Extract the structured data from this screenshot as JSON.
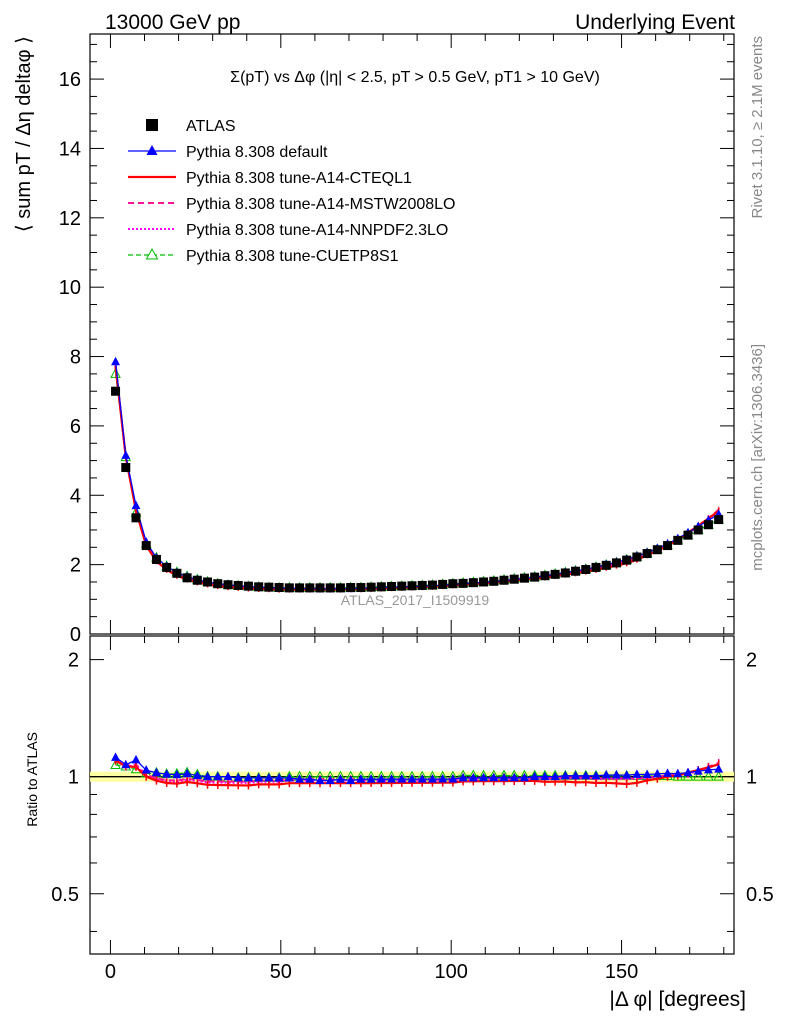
{
  "header": {
    "left": "13000 GeV pp",
    "right": "Underlying Event"
  },
  "side": {
    "rivet": "Rivet 3.1.10, ≥ 2.1M events",
    "mcplots": "mcplots.cern.ch [arXiv:1306.3436]"
  },
  "plot_title": "Σ(pT) vs Δφ (|η| < 2.5, pT > 0.5 GeV, pT1 > 10 GeV)",
  "watermark": "ATLAS_2017_I1509919",
  "colors": {
    "data": "#000000",
    "default": "#0000ff",
    "cteql1": "#ff0000",
    "mstw": "#ff1493",
    "nnpdf": "#ff00ff",
    "cuetp": "#00bb00",
    "band": "#ffff99"
  },
  "chart_data": [
    {
      "type": "scatter",
      "panel": "main",
      "ylabel": "⟨ sum pT / Δη deltaφ ⟩",
      "xlim": [
        -6,
        183
      ],
      "ylim": [
        0,
        17.3
      ],
      "x_ticks": [
        0,
        50,
        100,
        150
      ],
      "y_ticks": [
        0,
        2,
        4,
        6,
        8,
        10,
        12,
        14,
        16
      ],
      "legend_position": "top-left",
      "x": [
        1.5,
        4.5,
        7.5,
        10.5,
        13.5,
        16.5,
        19.5,
        22.5,
        25.5,
        28.5,
        31.5,
        34.5,
        37.5,
        40.5,
        43.5,
        46.5,
        49.5,
        52.5,
        55.5,
        58.5,
        61.5,
        64.5,
        67.5,
        70.5,
        73.5,
        76.5,
        79.5,
        82.5,
        85.5,
        88.5,
        91.5,
        94.5,
        97.5,
        100.5,
        103.5,
        106.5,
        109.5,
        112.5,
        115.5,
        118.5,
        121.5,
        124.5,
        127.5,
        130.5,
        133.5,
        136.5,
        139.5,
        142.5,
        145.5,
        148.5,
        151.5,
        154.5,
        157.5,
        160.5,
        163.5,
        166.5,
        169.5,
        172.5,
        175.5,
        178.5
      ],
      "series": [
        {
          "name": "ATLAS",
          "key": "data",
          "marker": "square",
          "values": [
            7.0,
            4.8,
            3.35,
            2.55,
            2.15,
            1.92,
            1.75,
            1.62,
            1.55,
            1.5,
            1.45,
            1.42,
            1.4,
            1.38,
            1.36,
            1.35,
            1.34,
            1.33,
            1.33,
            1.33,
            1.33,
            1.33,
            1.33,
            1.34,
            1.34,
            1.35,
            1.36,
            1.37,
            1.38,
            1.39,
            1.4,
            1.41,
            1.43,
            1.45,
            1.46,
            1.48,
            1.5,
            1.52,
            1.55,
            1.58,
            1.61,
            1.64,
            1.68,
            1.72,
            1.76,
            1.81,
            1.86,
            1.92,
            1.98,
            2.05,
            2.13,
            2.22,
            2.32,
            2.43,
            2.55,
            2.7,
            2.85,
            3.0,
            3.15,
            3.3
          ]
        },
        {
          "name": "Pythia 8.308 default",
          "key": "default",
          "marker": "triangle",
          "values": [
            7.85,
            5.15,
            3.7,
            2.65,
            2.2,
            1.95,
            1.77,
            1.65,
            1.56,
            1.5,
            1.45,
            1.42,
            1.39,
            1.37,
            1.35,
            1.34,
            1.33,
            1.32,
            1.31,
            1.31,
            1.3,
            1.3,
            1.31,
            1.31,
            1.32,
            1.33,
            1.34,
            1.35,
            1.36,
            1.37,
            1.38,
            1.39,
            1.41,
            1.43,
            1.45,
            1.47,
            1.49,
            1.51,
            1.54,
            1.57,
            1.6,
            1.64,
            1.68,
            1.72,
            1.77,
            1.82,
            1.87,
            1.93,
            2.0,
            2.07,
            2.15,
            2.25,
            2.35,
            2.47,
            2.6,
            2.75,
            2.92,
            3.1,
            3.28,
            3.45
          ]
        },
        {
          "name": "Pythia 8.308 tune-A14-CTEQL1",
          "key": "cteql1",
          "marker": "none",
          "values": [
            7.7,
            5.1,
            3.55,
            2.55,
            2.1,
            1.85,
            1.68,
            1.57,
            1.49,
            1.43,
            1.38,
            1.35,
            1.33,
            1.31,
            1.3,
            1.29,
            1.28,
            1.28,
            1.28,
            1.28,
            1.28,
            1.28,
            1.28,
            1.29,
            1.29,
            1.3,
            1.31,
            1.32,
            1.33,
            1.34,
            1.35,
            1.36,
            1.38,
            1.4,
            1.42,
            1.44,
            1.46,
            1.48,
            1.51,
            1.54,
            1.57,
            1.6,
            1.63,
            1.67,
            1.71,
            1.75,
            1.8,
            1.85,
            1.91,
            1.97,
            2.04,
            2.14,
            2.27,
            2.4,
            2.55,
            2.72,
            2.92,
            3.12,
            3.33,
            3.55
          ]
        },
        {
          "name": "Pythia 8.308 tune-A14-MSTW2008LO",
          "key": "mstw",
          "marker": "none",
          "values": [
            7.75,
            5.12,
            3.6,
            2.58,
            2.13,
            1.88,
            1.71,
            1.6,
            1.52,
            1.46,
            1.41,
            1.38,
            1.36,
            1.34,
            1.33,
            1.32,
            1.31,
            1.31,
            1.31,
            1.31,
            1.31,
            1.31,
            1.31,
            1.32,
            1.32,
            1.33,
            1.34,
            1.35,
            1.36,
            1.37,
            1.38,
            1.39,
            1.41,
            1.43,
            1.45,
            1.47,
            1.49,
            1.51,
            1.54,
            1.57,
            1.6,
            1.63,
            1.67,
            1.71,
            1.75,
            1.8,
            1.85,
            1.9,
            1.96,
            2.03,
            2.11,
            2.2,
            2.31,
            2.43,
            2.57,
            2.73,
            2.92,
            3.12,
            3.34,
            3.58
          ]
        },
        {
          "name": "Pythia 8.308 tune-A14-NNPDF2.3LO",
          "key": "nnpdf",
          "marker": "none",
          "values": [
            7.72,
            5.1,
            3.58,
            2.57,
            2.12,
            1.87,
            1.7,
            1.59,
            1.51,
            1.45,
            1.4,
            1.37,
            1.35,
            1.33,
            1.32,
            1.31,
            1.3,
            1.3,
            1.3,
            1.3,
            1.3,
            1.3,
            1.3,
            1.31,
            1.31,
            1.32,
            1.33,
            1.34,
            1.35,
            1.36,
            1.37,
            1.38,
            1.4,
            1.42,
            1.44,
            1.46,
            1.48,
            1.5,
            1.53,
            1.56,
            1.59,
            1.62,
            1.66,
            1.7,
            1.74,
            1.79,
            1.84,
            1.89,
            1.95,
            2.02,
            2.1,
            2.19,
            2.3,
            2.42,
            2.56,
            2.72,
            2.9,
            3.1,
            3.32,
            3.55
          ]
        },
        {
          "name": "Pythia 8.308 tune-CUETP8S1",
          "key": "cuetp",
          "marker": "open-triangle",
          "values": [
            7.5,
            5.1,
            3.5,
            2.6,
            2.2,
            1.95,
            1.78,
            1.66,
            1.57,
            1.5,
            1.45,
            1.41,
            1.39,
            1.37,
            1.35,
            1.34,
            1.33,
            1.33,
            1.33,
            1.33,
            1.33,
            1.33,
            1.33,
            1.34,
            1.34,
            1.35,
            1.36,
            1.37,
            1.38,
            1.39,
            1.4,
            1.41,
            1.43,
            1.45,
            1.47,
            1.49,
            1.51,
            1.53,
            1.56,
            1.59,
            1.62,
            1.65,
            1.69,
            1.73,
            1.77,
            1.82,
            1.87,
            1.93,
            1.99,
            2.06,
            2.14,
            2.23,
            2.33,
            2.44,
            2.56,
            2.7,
            2.85,
            3.0,
            3.15,
            3.3
          ]
        }
      ]
    },
    {
      "type": "scatter",
      "panel": "ratio",
      "xlabel": "|Δ φ| [degrees]",
      "ylabel": "Ratio to ATLAS",
      "xlim": [
        -6,
        183
      ],
      "ylim": [
        0.35,
        2.3
      ],
      "y_ticks": [
        0.5,
        1,
        2
      ],
      "y_tick_labels": [
        "0.5",
        "1",
        "2"
      ],
      "x_ticks": [
        0,
        50,
        100,
        150
      ],
      "reference_line": 1,
      "data_band": [
        0.97,
        1.03
      ],
      "note": "ratio series are the main-panel model values divided by the ATLAS values"
    }
  ]
}
